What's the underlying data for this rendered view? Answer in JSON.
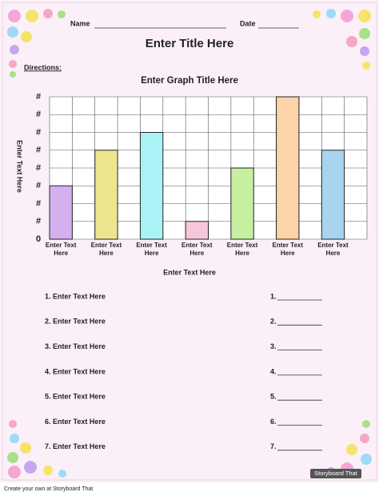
{
  "header": {
    "name_label": "Name",
    "date_label": "Date",
    "title": "Enter Title Here",
    "directions_label": "Directions:"
  },
  "chart_data": {
    "type": "bar",
    "title": "Enter Graph Title Here",
    "x_label": "Enter Text Here",
    "y_label": "Enter Text Here",
    "categories": [
      "Enter Text Here",
      "Enter Text Here",
      "Enter Text Here",
      "Enter Text Here",
      "Enter Text Here",
      "Enter Text Here",
      "Enter Text Here"
    ],
    "values": [
      3,
      5,
      6,
      1,
      4,
      8,
      5
    ],
    "colors": [
      "#d5b0ee",
      "#eee68f",
      "#a9f3f7",
      "#f7c6dc",
      "#c6f0a0",
      "#fcd4a7",
      "#a9d4ef"
    ],
    "ylim": [
      0,
      8
    ],
    "yticks": [
      0,
      {
        "value": 1,
        "label": "#"
      },
      {
        "value": 2,
        "label": "#"
      },
      {
        "value": 3,
        "label": "#"
      },
      {
        "value": 4,
        "label": "#"
      },
      {
        "value": 5,
        "label": "#"
      },
      {
        "value": 6,
        "label": "#"
      },
      {
        "value": 7,
        "label": "#"
      },
      {
        "value": 8,
        "label": "#"
      }
    ],
    "grid": true
  },
  "questions": [
    {
      "left": "1. Enter Text Here",
      "right": "1."
    },
    {
      "left": "2. Enter Text Here",
      "right": "2."
    },
    {
      "left": "3. Enter Text Here",
      "right": "3."
    },
    {
      "left": "4. Enter Text Here",
      "right": "4."
    },
    {
      "left": "5. Enter Text Here",
      "right": "5."
    },
    {
      "left": "6. Enter Text Here",
      "right": "6."
    },
    {
      "left": "7. Enter Text Here",
      "right": "7."
    }
  ],
  "footer": {
    "credit": "Create your own at Storyboard That",
    "logo": "Storyboard That"
  }
}
